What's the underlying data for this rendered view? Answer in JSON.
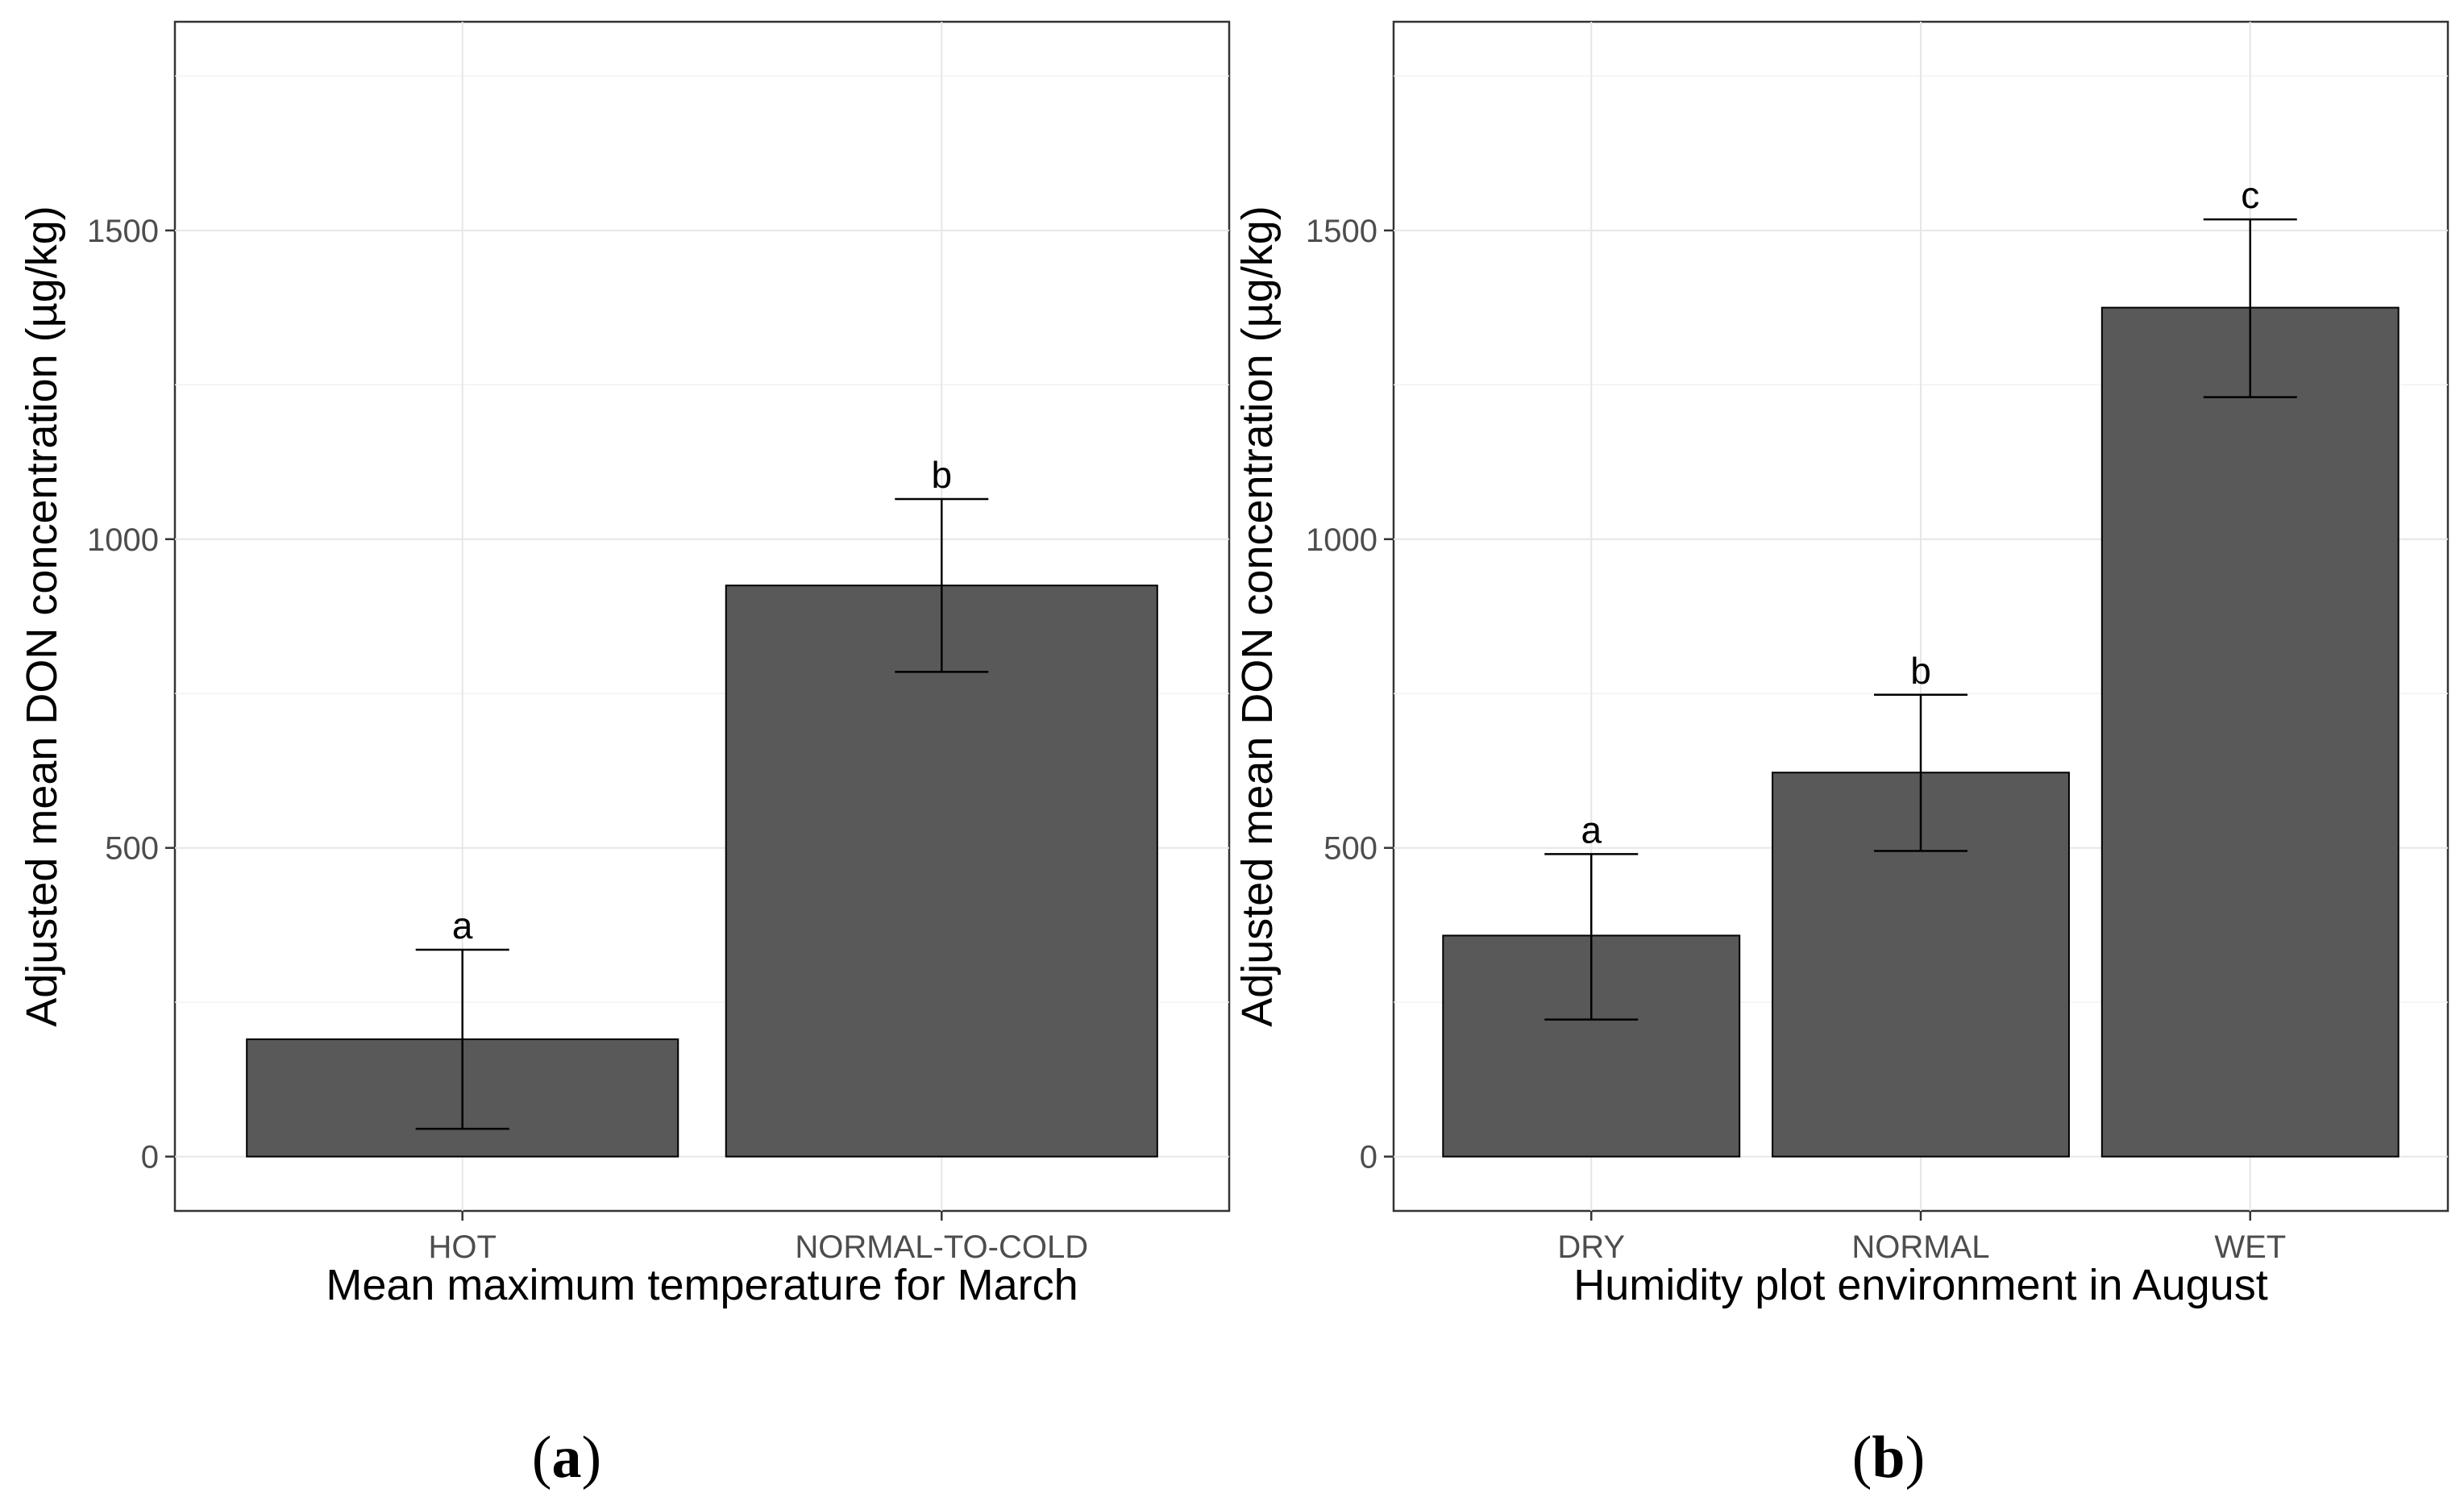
{
  "chart_data": [
    {
      "type": "bar",
      "panel_label": "a",
      "categories": [
        "HOT",
        "NORMAL-TO-COLD"
      ],
      "values": [
        190,
        925
      ],
      "error_low": [
        45,
        785
      ],
      "error_high": [
        335,
        1065
      ],
      "significance_letters": [
        "a",
        "b"
      ],
      "xlabel": "Mean maximum temperature for March",
      "ylabel": "Adjusted mean DON concentration (µg/kg)",
      "ylim": [
        -88,
        1838
      ],
      "yticks": [
        0,
        500,
        1000,
        1500
      ],
      "ytick_labels": [
        "0",
        "500",
        "1000",
        "1500"
      ],
      "grid": true
    },
    {
      "type": "bar",
      "panel_label": "b",
      "categories": [
        "DRY",
        "NORMAL",
        "WET"
      ],
      "values": [
        358,
        622,
        1375
      ],
      "error_low": [
        222,
        495,
        1230
      ],
      "error_high": [
        490,
        748,
        1518
      ],
      "significance_letters": [
        "a",
        "b",
        "c"
      ],
      "xlabel": "Humidity plot environment in August",
      "ylabel": "Adjusted mean DON concentration (µg/kg)",
      "ylim": [
        -88,
        1838
      ],
      "yticks": [
        0,
        500,
        1000,
        1500
      ],
      "ytick_labels": [
        "0",
        "500",
        "1000",
        "1500"
      ],
      "grid": true
    }
  ],
  "colors": {
    "bar_fill": "#595959",
    "bar_outline": "#000000",
    "grid": "#e6e6e6",
    "frame": "#333333"
  }
}
